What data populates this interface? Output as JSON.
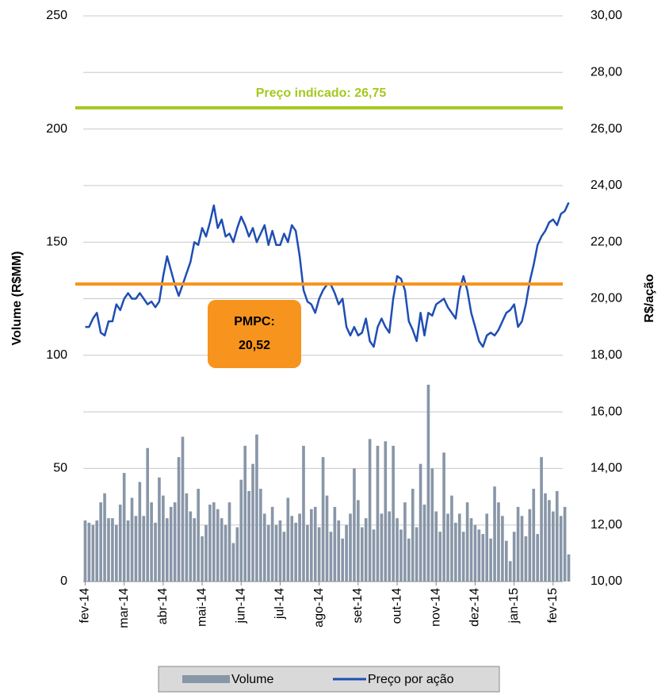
{
  "chart_data": {
    "type": "bar",
    "y_label": "Volume (R$MM)",
    "y2_label": "R$/ação",
    "ylim": [
      0,
      250
    ],
    "yticks": [
      0,
      50,
      100,
      150,
      200,
      250
    ],
    "y2lim": [
      10,
      30
    ],
    "y2ticks": [
      {
        "value": 10,
        "label": "10,00"
      },
      {
        "value": 12,
        "label": "12,00"
      },
      {
        "value": 14,
        "label": "14,00"
      },
      {
        "value": 16,
        "label": "16,00"
      },
      {
        "value": 18,
        "label": "18,00"
      },
      {
        "value": 20,
        "label": "20,00"
      },
      {
        "value": 22,
        "label": "22,00"
      },
      {
        "value": 24,
        "label": "24,00"
      },
      {
        "value": 26,
        "label": "26,00"
      },
      {
        "value": 28,
        "label": "28,00"
      },
      {
        "value": 30,
        "label": "30,00"
      }
    ],
    "grid": true,
    "categories": [
      "fev-14",
      null,
      null,
      null,
      null,
      null,
      null,
      null,
      null,
      null,
      "mar-14",
      null,
      null,
      null,
      null,
      null,
      null,
      null,
      null,
      null,
      "abr-14",
      null,
      null,
      null,
      null,
      null,
      null,
      null,
      null,
      null,
      "mai-14",
      null,
      null,
      null,
      null,
      null,
      null,
      null,
      null,
      null,
      "jun-14",
      null,
      null,
      null,
      null,
      null,
      null,
      null,
      null,
      null,
      "jul-14",
      null,
      null,
      null,
      null,
      null,
      null,
      null,
      null,
      null,
      "ago-14",
      null,
      null,
      null,
      null,
      null,
      null,
      null,
      null,
      null,
      "set-14",
      null,
      null,
      null,
      null,
      null,
      null,
      null,
      null,
      null,
      "out-14",
      null,
      null,
      null,
      null,
      null,
      null,
      null,
      null,
      null,
      "nov-14",
      null,
      null,
      null,
      null,
      null,
      null,
      null,
      null,
      null,
      "dez-14",
      null,
      null,
      null,
      null,
      null,
      null,
      null,
      null,
      null,
      "jan-15",
      null,
      null,
      null,
      null,
      null,
      null,
      null,
      null,
      null,
      "fev-15",
      null,
      null,
      null,
      null
    ],
    "series": [
      {
        "name": "Volume",
        "type": "bar",
        "axis": "y",
        "color": "#8896a8",
        "values": [
          27,
          26,
          25,
          27,
          35,
          39,
          28,
          28,
          25,
          34,
          48,
          27,
          37,
          29,
          44,
          29,
          59,
          35,
          26,
          46,
          38,
          28,
          33,
          35,
          55,
          64,
          39,
          31,
          28,
          41,
          20,
          25,
          34,
          35,
          32,
          28,
          25,
          35,
          17,
          24,
          45,
          60,
          40,
          52,
          65,
          41,
          30,
          25,
          33,
          25,
          27,
          22,
          37,
          29,
          26,
          30,
          60,
          25,
          32,
          33,
          24,
          55,
          38,
          22,
          33,
          27,
          19,
          25,
          30,
          50,
          36,
          24,
          28,
          63,
          23,
          60,
          30,
          62,
          31,
          60,
          28,
          23,
          35,
          19,
          41,
          24,
          52,
          34,
          87,
          50,
          31,
          22,
          57,
          30,
          38,
          26,
          30,
          22,
          35,
          28,
          25,
          23,
          21,
          30,
          19,
          42,
          35,
          29,
          18,
          9,
          22,
          33,
          29,
          20,
          32,
          41,
          21,
          55,
          39,
          36,
          31,
          40,
          29,
          33,
          12
        ]
      },
      {
        "name": "Preço por ação",
        "type": "line",
        "axis": "y2",
        "color": "#1f4eb4",
        "values": [
          19.0,
          19.0,
          19.3,
          19.5,
          18.8,
          18.7,
          19.2,
          19.2,
          19.8,
          19.6,
          20.0,
          20.2,
          20.0,
          20.0,
          20.2,
          20.0,
          19.8,
          19.9,
          19.7,
          19.9,
          20.8,
          21.5,
          21.0,
          20.5,
          20.1,
          20.5,
          20.9,
          21.3,
          22.0,
          21.9,
          22.5,
          22.2,
          22.7,
          23.3,
          22.5,
          22.8,
          22.2,
          22.3,
          22.0,
          22.5,
          22.9,
          22.6,
          22.2,
          22.5,
          22.0,
          22.3,
          22.6,
          21.9,
          22.4,
          21.9,
          21.9,
          22.3,
          22.0,
          22.6,
          22.4,
          21.5,
          20.3,
          19.9,
          19.8,
          19.5,
          20.0,
          20.3,
          20.5,
          20.5,
          20.2,
          19.8,
          20.0,
          19.0,
          18.7,
          19.0,
          18.7,
          18.8,
          19.3,
          18.5,
          18.3,
          19.0,
          19.3,
          19.0,
          18.8,
          20.0,
          20.8,
          20.7,
          20.3,
          19.2,
          18.9,
          18.5,
          19.5,
          18.7,
          19.5,
          19.4,
          19.8,
          19.9,
          20.0,
          19.7,
          19.5,
          19.3,
          20.3,
          20.8,
          20.3,
          19.5,
          19.0,
          18.5,
          18.3,
          18.7,
          18.8,
          18.7,
          18.9,
          19.2,
          19.5,
          19.6,
          19.8,
          19.0,
          19.2,
          19.8,
          20.6,
          21.2,
          21.9,
          22.2,
          22.4,
          22.7,
          22.8,
          22.6,
          23.0,
          23.1,
          23.4
        ]
      }
    ],
    "reference_lines": [
      {
        "label": "Preço indicado: 26,75",
        "value": 26.75,
        "axis": "y2",
        "color": "#a5c81e"
      },
      {
        "label": "PMPC:",
        "sublabel": "20,52",
        "value": 20.52,
        "axis": "y2",
        "color": "#f7941d"
      }
    ],
    "legend": "bottom"
  }
}
